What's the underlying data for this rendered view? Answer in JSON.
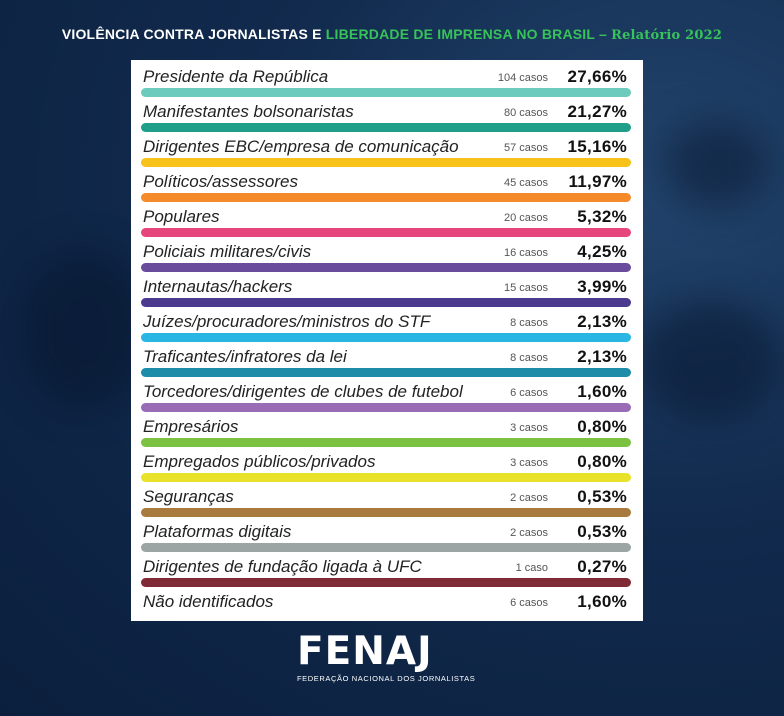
{
  "header": {
    "part1": "VIOLÊNCIA CONTRA JORNALISTAS E ",
    "part2": "LIBERDADE DE IMPRENSA NO BRASIL",
    "part3": " – ",
    "part4": "Relatório 2022"
  },
  "logo": {
    "word": "FENAJ",
    "subtitle": "FEDERAÇÃO NACIONAL DOS JORNALISTAS"
  },
  "chart_data": {
    "type": "bar",
    "title": "VIOLÊNCIA CONTRA JORNALISTAS E LIBERDADE DE IMPRENSA NO BRASIL – Relatório 2022",
    "categories": [
      "Presidente da República",
      "Manifestantes bolsonaristas",
      "Dirigentes EBC/empresa de comunicação",
      "Políticos/assessores",
      "Populares",
      "Policiais militares/civis",
      "Internautas/hackers",
      "Juízes/procuradores/ministros do STF",
      "Traficantes/infratores da lei",
      "Torcedores/dirigentes de clubes de futebol",
      "Empresários",
      "Empregados públicos/privados",
      "Seguranças",
      "Plataformas digitais",
      "Dirigentes de fundação ligada à UFC",
      "Não identificados"
    ],
    "cases": [
      104,
      80,
      57,
      45,
      20,
      16,
      15,
      8,
      8,
      6,
      3,
      3,
      2,
      2,
      1,
      6
    ],
    "case_labels": [
      "104 casos",
      "80 casos",
      "57 casos",
      "45 casos",
      "20 casos",
      "16 casos",
      "15 casos",
      "8 casos",
      "8 casos",
      "6 casos",
      "3 casos",
      "3 casos",
      "2 casos",
      "2 casos",
      "1 caso",
      "6 casos"
    ],
    "values": [
      27.66,
      21.27,
      15.16,
      11.97,
      5.32,
      4.25,
      3.99,
      2.13,
      2.13,
      1.6,
      0.8,
      0.8,
      0.53,
      0.53,
      0.27,
      1.6
    ],
    "value_labels": [
      "27,66%",
      "21,27%",
      "15,16%",
      "11,97%",
      "5,32%",
      "4,25%",
      "3,99%",
      "2,13%",
      "2,13%",
      "1,60%",
      "0,80%",
      "0,80%",
      "0,53%",
      "0,53%",
      "0,27%",
      "1,60%"
    ],
    "colors": [
      "#6ccbbd",
      "#1f9e8a",
      "#f7c21a",
      "#f48a2a",
      "#e6467c",
      "#6a4c9c",
      "#4b3a8e",
      "#29b6e3",
      "#1d8ca8",
      "#9a6cb6",
      "#7cc242",
      "#e8e32a",
      "#a87a3e",
      "#9aa5a4",
      "#7f2a34",
      null
    ]
  }
}
